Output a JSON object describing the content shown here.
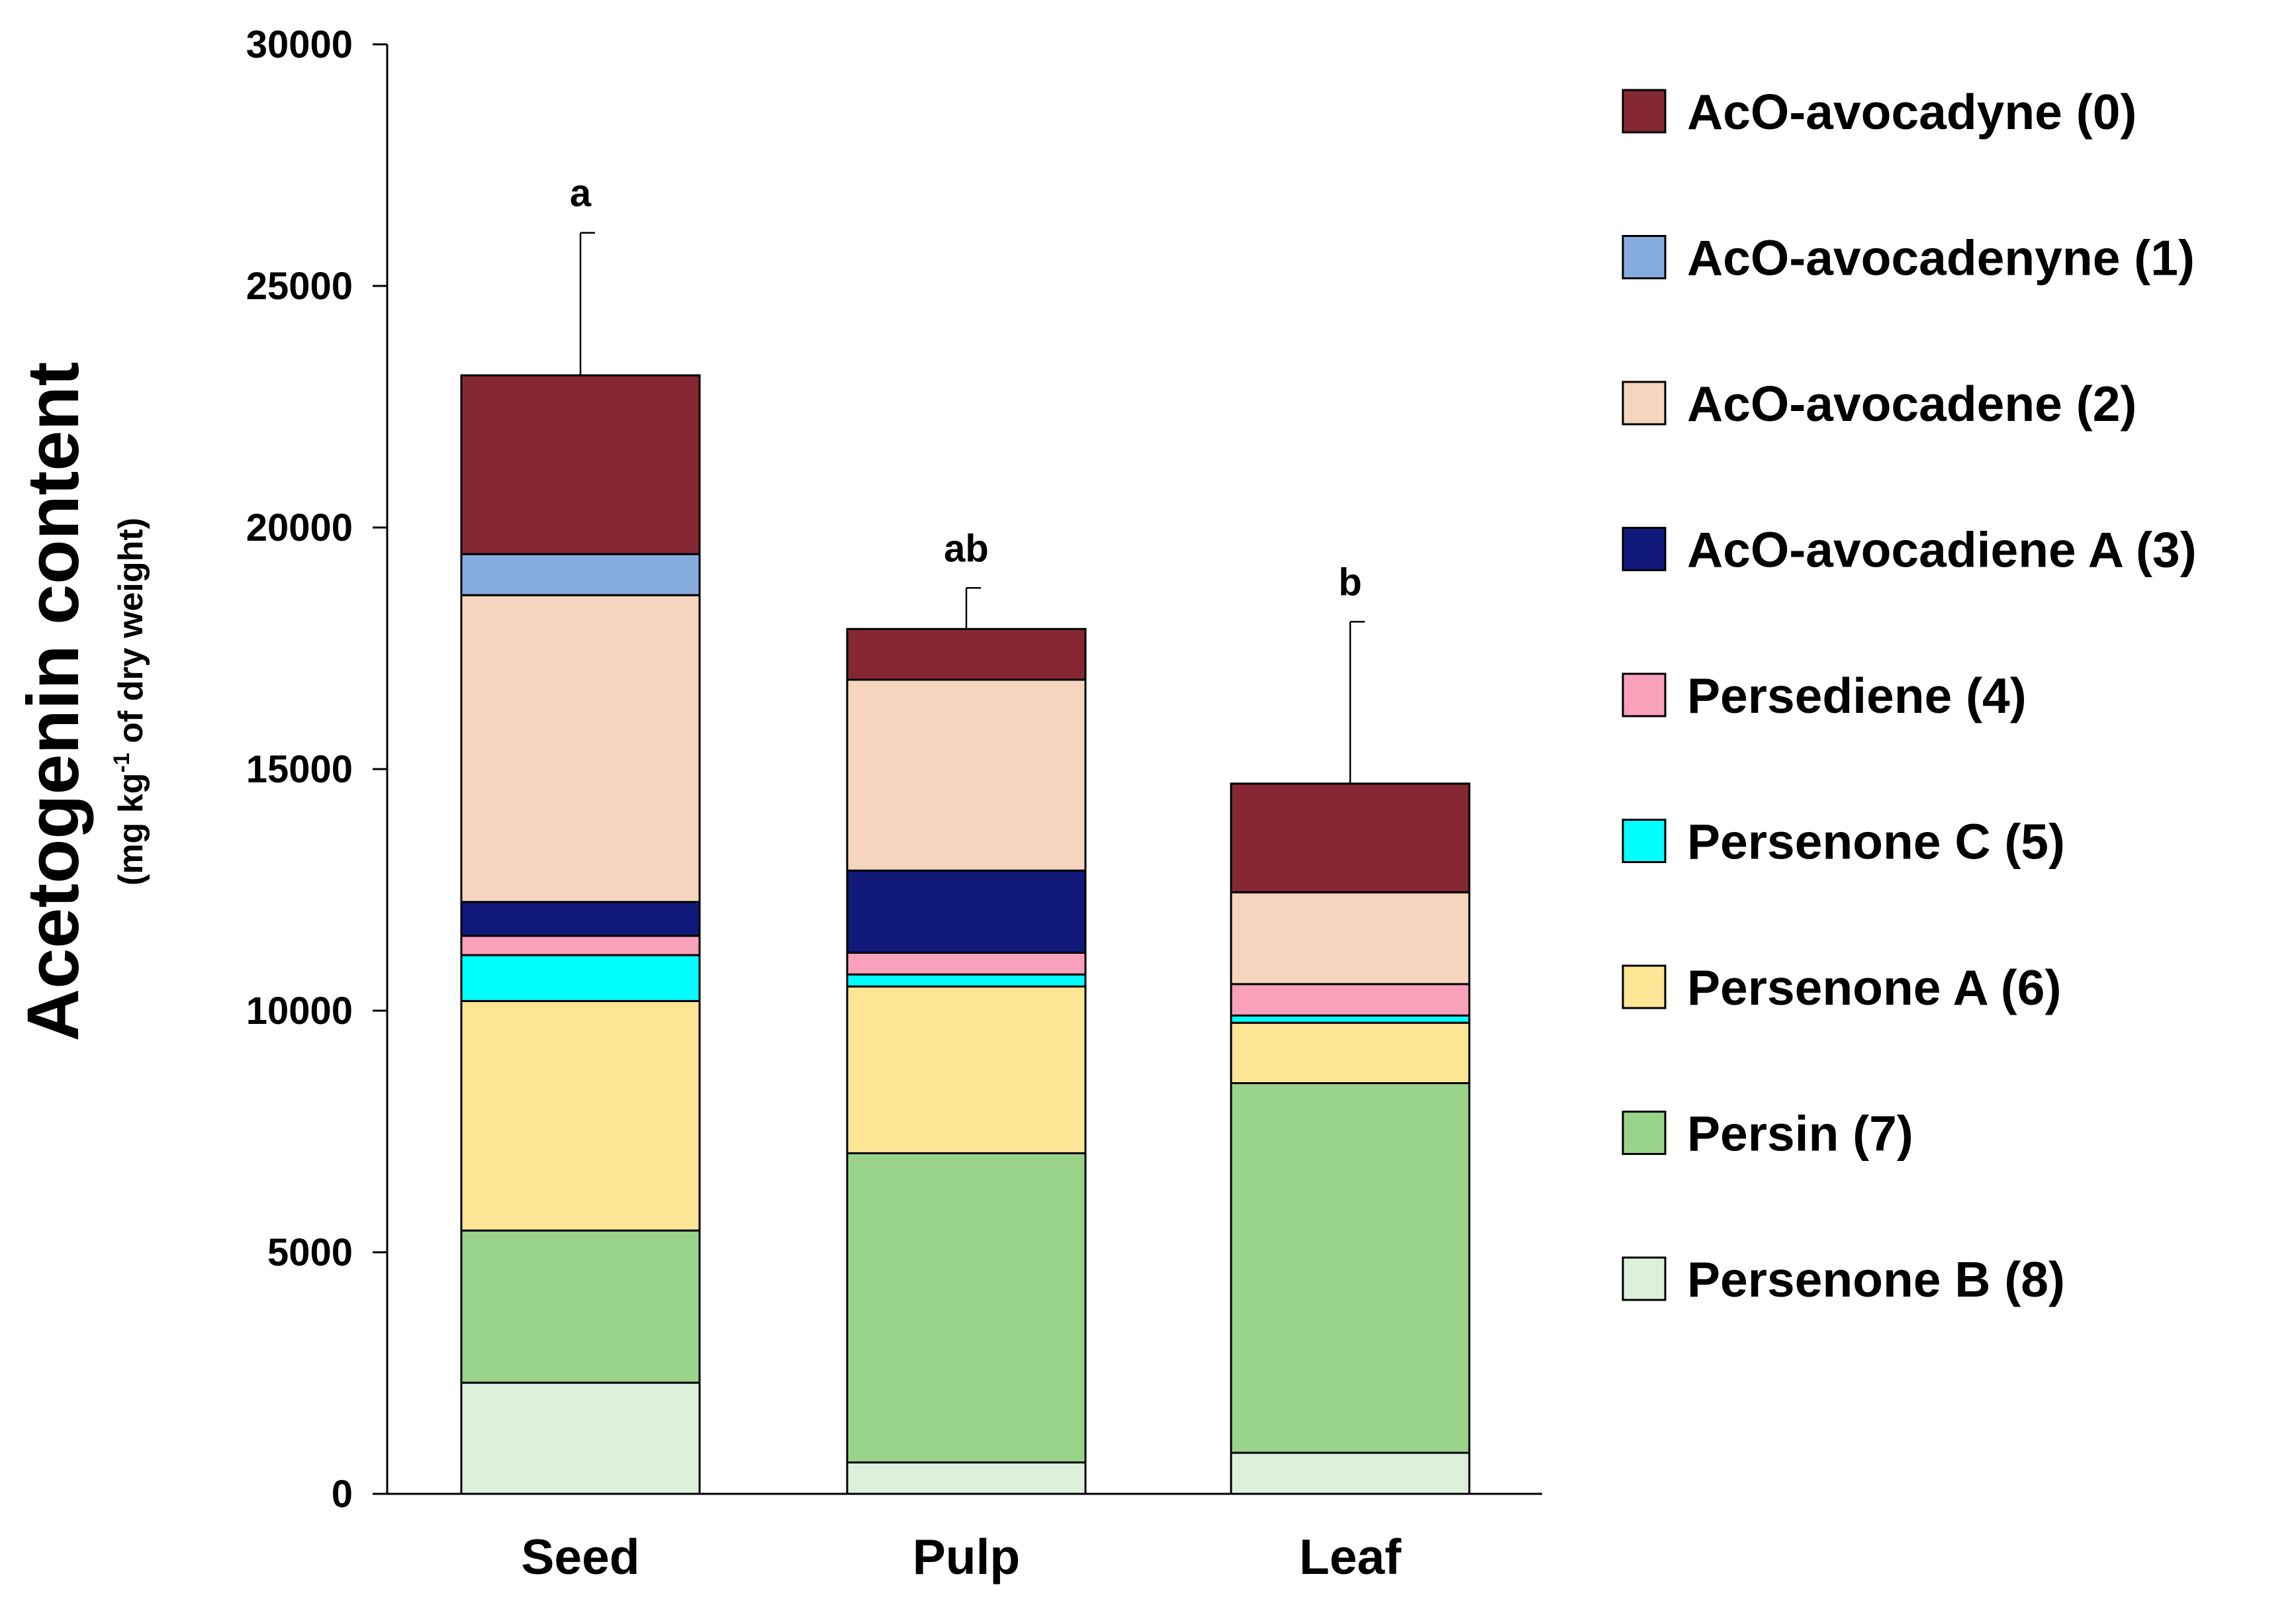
{
  "chart_data": {
    "type": "stacked-bar",
    "title": "",
    "xlabel": "",
    "ylabel": "Acetogenin content",
    "ylabel_unit": {
      "prefix": "(mg kg",
      "superscript": "-1",
      "suffix": " of dry weight)"
    },
    "ylim": [
      0,
      30000
    ],
    "yticks": [
      0,
      5000,
      10000,
      15000,
      20000,
      25000,
      30000
    ],
    "grid": false,
    "legend_position": "right",
    "categories": [
      "Seed",
      "Pulp",
      "Leaf"
    ],
    "significance": [
      "a",
      "ab",
      "b"
    ],
    "error_bars": [
      {
        "category": "Seed",
        "upper": 26100
      },
      {
        "category": "Pulp",
        "upper": 18750
      },
      {
        "category": "Leaf",
        "upper": 18050
      }
    ],
    "series": [
      {
        "name": "Persenone B (8)",
        "color": "#ddf0dc",
        "values": [
          2300,
          650,
          850
        ]
      },
      {
        "name": "Persin (7)",
        "color": "#99d38a",
        "values": [
          3150,
          6400,
          7650
        ]
      },
      {
        "name": "Persenone A (6)",
        "color": "#fde596",
        "values": [
          4750,
          3450,
          1250
        ]
      },
      {
        "name": "Persenone C (5)",
        "color": "#00ffff",
        "values": [
          950,
          250,
          150
        ]
      },
      {
        "name": "Persediene (4)",
        "color": "#f9a0bb",
        "values": [
          400,
          450,
          650
        ]
      },
      {
        "name": "AcO-avocadiene A (3)",
        "color": "#10197a",
        "values": [
          700,
          1700,
          0
        ]
      },
      {
        "name": "AcO-avocadene (2)",
        "color": "#f5d5bd",
        "values": [
          6350,
          3950,
          1900
        ]
      },
      {
        "name": "AcO-avocadenyne (1)",
        "color": "#86acdf",
        "values": [
          850,
          0,
          0
        ]
      },
      {
        "name": "AcO-avocadyne (0)",
        "color": "#852833",
        "values": [
          3700,
          1050,
          2250
        ]
      }
    ],
    "legend_order": [
      "AcO-avocadyne (0)",
      "AcO-avocadenyne (1)",
      "AcO-avocadene (2)",
      "AcO-avocadiene A (3)",
      "Persediene (4)",
      "Persenone C (5)",
      "Persenone A (6)",
      "Persin (7)",
      "Persenone B (8)"
    ]
  }
}
